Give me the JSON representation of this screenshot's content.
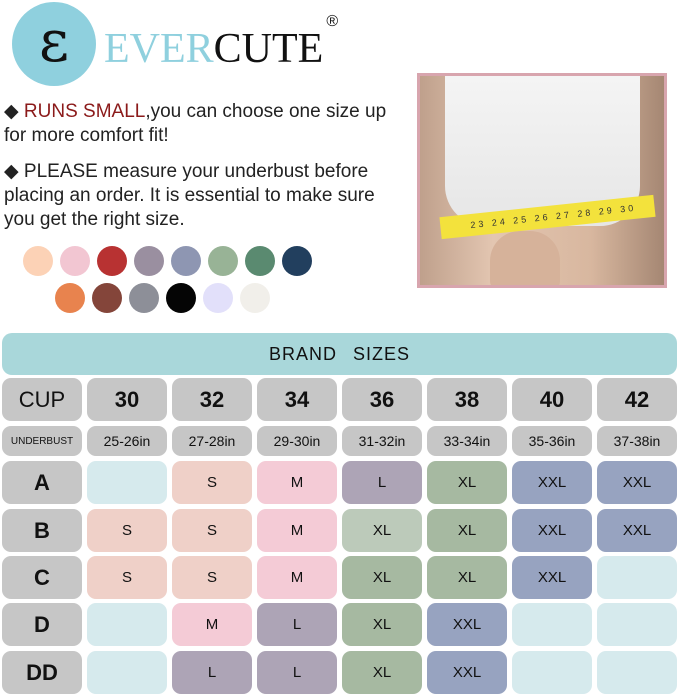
{
  "logo": {
    "glyph": "ε",
    "brand_part1": "EVER",
    "brand_part2": "CUTE",
    "registered": "®",
    "brand_color": "#8fd0de"
  },
  "notes": [
    {
      "bullet": "◆",
      "highlight": "RUNS SMALL",
      "text": ",you can choose one size up for more comfort fit!",
      "highlight_color": "#8b1a1a"
    },
    {
      "bullet": "◆",
      "highlight": "",
      "text": "PLEASE measure your underbust before placing an order. It is essential to make sure you get the right size."
    }
  ],
  "color_swatches": [
    "#fcd2b6",
    "#f2c6d2",
    "#b83232",
    "#9a8fa0",
    "#8e96b2",
    "#98b396",
    "#5a8a70",
    "#223f5e",
    "#e8834e",
    "#84453a",
    "#8d8f98",
    "#050505",
    "#e2e0fa",
    "#f1efea"
  ],
  "photo": {
    "tape_numbers": "23 24 25 26 27 28 29 30"
  },
  "table": {
    "title": "BRAND SIZES",
    "cup_label": "CUP",
    "underbust_label": "UNDERBUST",
    "bands": [
      "30",
      "32",
      "34",
      "36",
      "38",
      "40",
      "42"
    ],
    "underbust": [
      "25-26in",
      "27-28in",
      "29-30in",
      "31-32in",
      "33-34in",
      "35-36in",
      "37-38in"
    ],
    "rows": [
      {
        "cup": "A",
        "sizes": [
          "",
          "S",
          "M",
          "L",
          "XL",
          "XXL",
          "XXL"
        ]
      },
      {
        "cup": "B",
        "sizes": [
          "S",
          "S",
          "M",
          "XL",
          "XL",
          "XXL",
          "XXL"
        ]
      },
      {
        "cup": "C",
        "sizes": [
          "S",
          "S",
          "M",
          "XL",
          "XL",
          "XXL",
          ""
        ]
      },
      {
        "cup": "D",
        "sizes": [
          "",
          "M",
          "L",
          "XL",
          "XXL",
          "",
          ""
        ]
      },
      {
        "cup": "DD",
        "sizes": [
          "",
          "L",
          "L",
          "XL",
          "XXL",
          "",
          ""
        ]
      }
    ],
    "size_colors": {
      "": "#d6eaed",
      "S": "#efd0c8",
      "M": "#f4cbd6",
      "L": "#ada4b6",
      "XL": "#a6b9a1",
      "XXL": "#97a3c0"
    }
  }
}
